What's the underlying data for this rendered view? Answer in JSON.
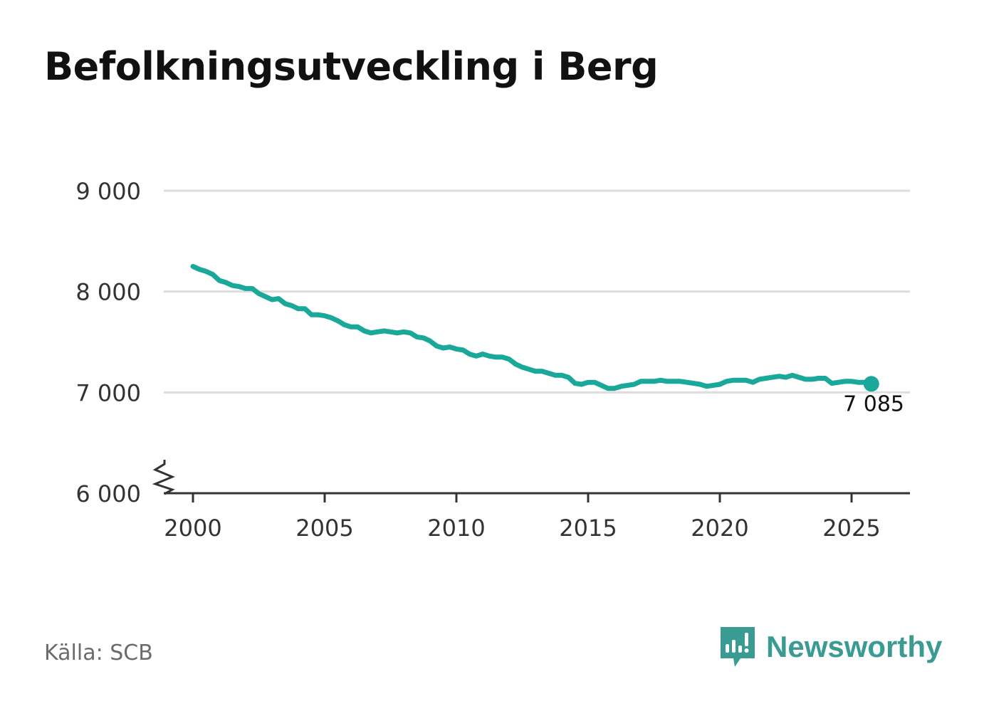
{
  "title": "Befolkningsutveckling i Berg",
  "source": "Källa: SCB",
  "brand": {
    "name": "Newsworthy",
    "color": "#3a9b93",
    "icon": "newsworthy-logo-icon"
  },
  "colors": {
    "line": "#1aa89a",
    "grid": "#dddddd",
    "axis": "#333333",
    "text": "#333333"
  },
  "chart_data": {
    "type": "line",
    "title": "Befolkningsutveckling i Berg",
    "xlabel": "",
    "ylabel": "",
    "xlim": [
      1999.5,
      2027.3
    ],
    "ylim": [
      6000,
      9000
    ],
    "y_axis_break": true,
    "grid": true,
    "y_ticks": [
      6000,
      7000,
      8000,
      9000
    ],
    "y_tick_labels": [
      "6 000",
      "7 000",
      "8 000",
      "9 000"
    ],
    "x_ticks": [
      2000,
      2005,
      2010,
      2015,
      2020,
      2025
    ],
    "x_tick_labels": [
      "2000",
      "2005",
      "2010",
      "2015",
      "2020",
      "2025"
    ],
    "series": [
      {
        "name": "Befolkning",
        "x": [
          2000.0,
          2000.25,
          2000.5,
          2000.75,
          2001.0,
          2001.25,
          2001.5,
          2001.75,
          2002.0,
          2002.25,
          2002.5,
          2002.75,
          2003.0,
          2003.25,
          2003.5,
          2003.75,
          2004.0,
          2004.25,
          2004.5,
          2004.75,
          2005.0,
          2005.25,
          2005.5,
          2005.75,
          2006.0,
          2006.25,
          2006.5,
          2006.75,
          2007.0,
          2007.25,
          2007.5,
          2007.75,
          2008.0,
          2008.25,
          2008.5,
          2008.75,
          2009.0,
          2009.25,
          2009.5,
          2009.75,
          2010.0,
          2010.25,
          2010.5,
          2010.75,
          2011.0,
          2011.25,
          2011.5,
          2011.75,
          2012.0,
          2012.25,
          2012.5,
          2012.75,
          2013.0,
          2013.25,
          2013.5,
          2013.75,
          2014.0,
          2014.25,
          2014.5,
          2014.75,
          2015.0,
          2015.25,
          2015.5,
          2015.75,
          2016.0,
          2016.25,
          2016.5,
          2016.75,
          2017.0,
          2017.25,
          2017.5,
          2017.75,
          2018.0,
          2018.25,
          2018.5,
          2018.75,
          2019.0,
          2019.25,
          2019.5,
          2019.75,
          2020.0,
          2020.25,
          2020.5,
          2020.75,
          2021.0,
          2021.25,
          2021.5,
          2021.75,
          2022.0,
          2022.25,
          2022.5,
          2022.75,
          2023.0,
          2023.25,
          2023.5,
          2023.75,
          2024.0,
          2024.25,
          2024.5,
          2024.75,
          2025.0,
          2025.25,
          2025.5,
          2025.75
        ],
        "values": [
          8250,
          8220,
          8200,
          8170,
          8110,
          8090,
          8060,
          8050,
          8030,
          8030,
          7980,
          7950,
          7920,
          7930,
          7880,
          7860,
          7830,
          7830,
          7770,
          7770,
          7760,
          7740,
          7710,
          7670,
          7650,
          7650,
          7610,
          7590,
          7600,
          7610,
          7600,
          7590,
          7600,
          7590,
          7550,
          7540,
          7510,
          7460,
          7440,
          7450,
          7430,
          7420,
          7380,
          7360,
          7380,
          7360,
          7350,
          7350,
          7330,
          7280,
          7250,
          7230,
          7210,
          7210,
          7190,
          7170,
          7170,
          7150,
          7090,
          7080,
          7100,
          7100,
          7070,
          7040,
          7040,
          7060,
          7070,
          7080,
          7110,
          7110,
          7110,
          7120,
          7110,
          7110,
          7110,
          7100,
          7090,
          7080,
          7060,
          7070,
          7080,
          7110,
          7120,
          7120,
          7120,
          7100,
          7130,
          7140,
          7150,
          7160,
          7150,
          7170,
          7150,
          7130,
          7130,
          7140,
          7140,
          7090,
          7100,
          7110,
          7110,
          7100,
          7100,
          7085
        ]
      }
    ],
    "last_point": {
      "x": 2025.75,
      "value": 7085,
      "label": "7 085"
    }
  }
}
